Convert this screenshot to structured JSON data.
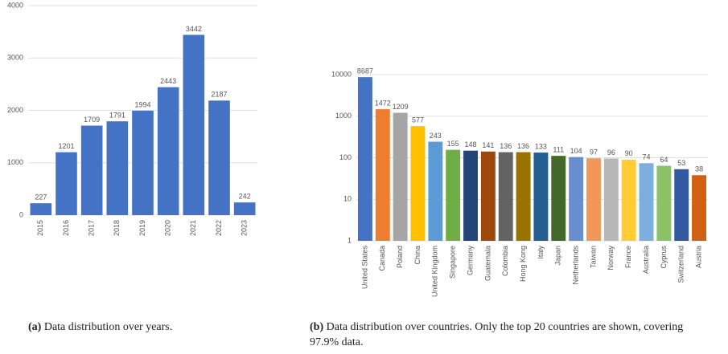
{
  "chart_data": [
    {
      "type": "bar",
      "caption_label": "(a)",
      "caption": "Data distribution over years.",
      "categories": [
        "2015",
        "2016",
        "2017",
        "2018",
        "2019",
        "2020",
        "2021",
        "2022",
        "2023"
      ],
      "values": [
        227,
        1201,
        1709,
        1791,
        1994,
        2443,
        3442,
        2187,
        242
      ],
      "color": "#4472c4",
      "ylim": [
        0,
        4000
      ],
      "yticks": [
        0,
        1000,
        2000,
        3000,
        4000
      ],
      "grid": true,
      "log": false
    },
    {
      "type": "bar",
      "caption_label": "(b)",
      "caption": "Data distribution over countries. Only the top 20 countries are shown, covering 97.9% data.",
      "categories": [
        "United States",
        "Canada",
        "Poland",
        "China",
        "United Kingdom",
        "Singapore",
        "Germany",
        "Guatemala",
        "Colombia",
        "Hong Kong",
        "Italy",
        "Japan",
        "Netherlands",
        "Taiwan",
        "Norway",
        "France",
        "Australia",
        "Cyprus",
        "Switzerland",
        "Austria"
      ],
      "values": [
        8687,
        1472,
        1209,
        577,
        243,
        155,
        148,
        141,
        136,
        136,
        133,
        111,
        104,
        97,
        96,
        90,
        74,
        64,
        53,
        38
      ],
      "colors": [
        "#4472c4",
        "#ed7d31",
        "#a5a5a5",
        "#ffc000",
        "#5b9bd5",
        "#70ad47",
        "#264478",
        "#9e480e",
        "#636363",
        "#997300",
        "#255e91",
        "#43682b",
        "#698ed0",
        "#f1975a",
        "#b7b7b7",
        "#ffcd33",
        "#7cafdd",
        "#8cc168",
        "#335aa1",
        "#d26012"
      ],
      "ylim": [
        1,
        10000
      ],
      "yticks": [
        1,
        10,
        100,
        1000,
        10000
      ],
      "grid": true,
      "log": true
    }
  ]
}
